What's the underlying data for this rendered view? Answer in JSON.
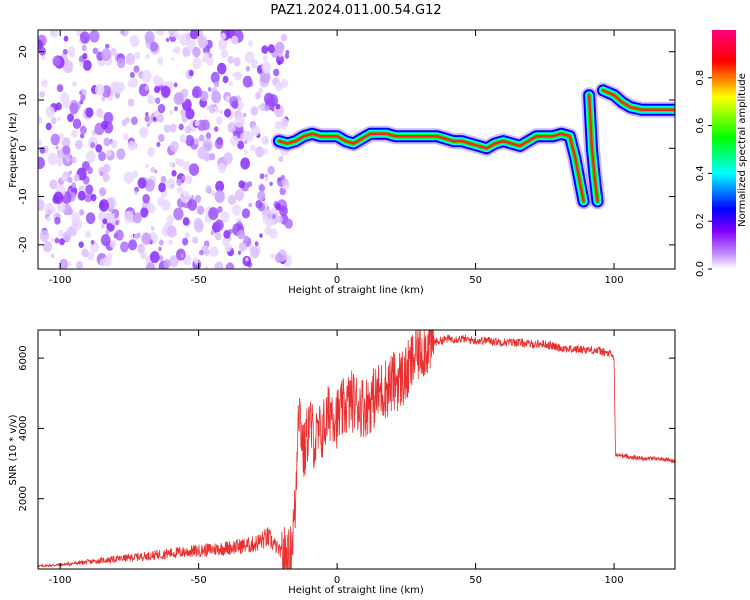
{
  "title": "PAZ1.2024.011.00.54.G12",
  "chart_data": [
    {
      "type": "heatmap",
      "xlabel": "Height of straight line (km)",
      "ylabel": "Frequency (Hz)",
      "xlim": [
        -108,
        122
      ],
      "ylim": [
        -25,
        24.5
      ],
      "xticks": [
        -100,
        -50,
        0,
        50,
        100
      ],
      "yticks": [
        -20,
        -10,
        0,
        10,
        20
      ],
      "colorbar": {
        "label": "Normalized spectral amplitude",
        "range": [
          0,
          1
        ],
        "ticks": [
          0.0,
          0.2,
          0.4,
          0.6,
          0.8
        ],
        "colormap": [
          "#ffffff",
          "#8000ff",
          "#0000ff",
          "#00ffff",
          "#00ff00",
          "#ffff00",
          "#ff0000",
          "#ff0080"
        ]
      },
      "noise_region_x": [
        -108,
        -17
      ],
      "ridge": [
        [
          -21,
          1.5
        ],
        [
          -18,
          1
        ],
        [
          -15,
          1.5
        ],
        [
          -12,
          2.5
        ],
        [
          -9,
          3
        ],
        [
          -6,
          2.5
        ],
        [
          -3,
          2.5
        ],
        [
          0,
          2.5
        ],
        [
          3,
          1.5
        ],
        [
          6,
          1
        ],
        [
          9,
          2
        ],
        [
          12,
          3
        ],
        [
          15,
          3
        ],
        [
          18,
          3
        ],
        [
          21,
          2.5
        ],
        [
          24,
          2.5
        ],
        [
          27,
          2.5
        ],
        [
          30,
          2.5
        ],
        [
          33,
          2.5
        ],
        [
          36,
          2.5
        ],
        [
          39,
          2
        ],
        [
          42,
          1.5
        ],
        [
          45,
          1.5
        ],
        [
          48,
          1
        ],
        [
          51,
          0.5
        ],
        [
          54,
          0
        ],
        [
          57,
          1
        ],
        [
          60,
          1.5
        ],
        [
          63,
          1
        ],
        [
          66,
          0.5
        ],
        [
          69,
          1.5
        ],
        [
          72,
          2.5
        ],
        [
          75,
          2.5
        ],
        [
          78,
          2.5
        ],
        [
          81,
          3
        ],
        [
          84,
          2.5
        ],
        [
          86,
          -2
        ],
        [
          88,
          -8
        ],
        [
          89,
          -11
        ]
      ],
      "ridge2": [
        [
          91,
          11
        ],
        [
          92,
          0
        ],
        [
          93,
          -6
        ],
        [
          94,
          -11
        ]
      ],
      "ridge3": [
        [
          96,
          12
        ],
        [
          98,
          11.5
        ],
        [
          100,
          11
        ],
        [
          103,
          9.5
        ],
        [
          106,
          8.5
        ],
        [
          110,
          8
        ],
        [
          116,
          8
        ],
        [
          122,
          8
        ]
      ]
    },
    {
      "type": "line",
      "xlabel": "Height of straight line (km)",
      "ylabel": "SNR (10 * v/v)",
      "xlim": [
        -108,
        122
      ],
      "ylim": [
        0,
        6800
      ],
      "xticks": [
        -100,
        -50,
        0,
        50,
        100
      ],
      "yticks": [
        2000,
        4000,
        6000
      ],
      "color": "#e83030",
      "series": [
        {
          "x": [
            -108,
            -100,
            -90,
            -80,
            -70,
            -60,
            -50,
            -40,
            -30,
            -25,
            -20,
            -17,
            -15,
            -14,
            -12,
            -10,
            -8,
            -5,
            -2,
            0,
            5,
            10,
            15,
            20,
            25,
            28,
            30,
            35,
            40,
            45,
            50,
            55,
            60,
            65,
            70,
            75,
            80,
            85,
            90,
            95,
            99,
            100,
            100.5,
            105,
            110,
            115,
            120,
            122
          ],
          "y": [
            80,
            120,
            200,
            280,
            360,
            450,
            520,
            600,
            700,
            900,
            450,
            250,
            1800,
            4900,
            3200,
            4200,
            3600,
            4000,
            4600,
            4300,
            4800,
            4600,
            5000,
            5300,
            5500,
            6050,
            6250,
            6450,
            6550,
            6550,
            6500,
            6500,
            6450,
            6450,
            6400,
            6400,
            6300,
            6250,
            6250,
            6200,
            6100,
            6000,
            3250,
            3200,
            3150,
            3150,
            3100,
            3050
          ]
        }
      ]
    }
  ]
}
